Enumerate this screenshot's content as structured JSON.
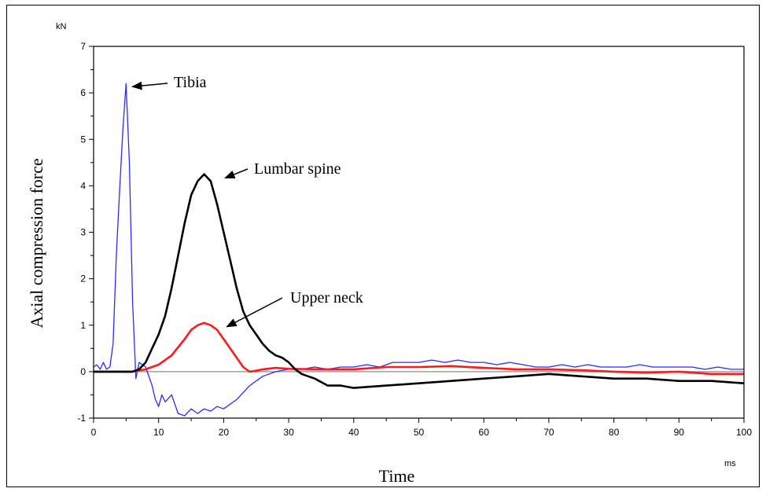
{
  "chart_data": {
    "type": "line",
    "xlabel": "Time",
    "ylabel": "Axial compression force",
    "x_unit": "ms",
    "y_unit": "kN",
    "xlim": [
      0,
      100
    ],
    "ylim": [
      -1,
      7
    ],
    "xticks": [
      0,
      10,
      20,
      30,
      40,
      50,
      60,
      70,
      80,
      90,
      100
    ],
    "yticks": [
      -1,
      0,
      1,
      2,
      3,
      4,
      5,
      6,
      7
    ],
    "grid": false,
    "zero_line_color": "#a0a0a0",
    "series": [
      {
        "label": "Tibia",
        "color": "#2b2bff",
        "points": [
          [
            0,
            0.1
          ],
          [
            0.5,
            0.15
          ],
          [
            1,
            0.05
          ],
          [
            1.5,
            0.2
          ],
          [
            2,
            0.05
          ],
          [
            2.5,
            0.1
          ],
          [
            3,
            0.6
          ],
          [
            3.5,
            2.5
          ],
          [
            4,
            3.9
          ],
          [
            4.5,
            5.2
          ],
          [
            5,
            6.2
          ],
          [
            5.5,
            4.5
          ],
          [
            6,
            1.5
          ],
          [
            6.5,
            -0.15
          ],
          [
            7,
            0.2
          ],
          [
            8,
            0.1
          ],
          [
            9,
            -0.3
          ],
          [
            9.5,
            -0.6
          ],
          [
            10,
            -0.75
          ],
          [
            10.5,
            -0.5
          ],
          [
            11,
            -0.65
          ],
          [
            12,
            -0.5
          ],
          [
            13,
            -0.9
          ],
          [
            14,
            -0.95
          ],
          [
            15,
            -0.8
          ],
          [
            16,
            -0.9
          ],
          [
            17,
            -0.8
          ],
          [
            18,
            -0.85
          ],
          [
            19,
            -0.75
          ],
          [
            20,
            -0.8
          ],
          [
            22,
            -0.6
          ],
          [
            24,
            -0.3
          ],
          [
            26,
            -0.1
          ],
          [
            28,
            0
          ],
          [
            30,
            0.05
          ],
          [
            32,
            0.05
          ],
          [
            34,
            0.1
          ],
          [
            36,
            0.05
          ],
          [
            38,
            0.1
          ],
          [
            40,
            0.1
          ],
          [
            42,
            0.15
          ],
          [
            44,
            0.1
          ],
          [
            46,
            0.2
          ],
          [
            48,
            0.2
          ],
          [
            50,
            0.2
          ],
          [
            52,
            0.25
          ],
          [
            54,
            0.2
          ],
          [
            56,
            0.25
          ],
          [
            58,
            0.2
          ],
          [
            60,
            0.2
          ],
          [
            62,
            0.15
          ],
          [
            64,
            0.2
          ],
          [
            66,
            0.15
          ],
          [
            68,
            0.1
          ],
          [
            70,
            0.1
          ],
          [
            72,
            0.15
          ],
          [
            74,
            0.1
          ],
          [
            76,
            0.15
          ],
          [
            78,
            0.1
          ],
          [
            80,
            0.1
          ],
          [
            82,
            0.1
          ],
          [
            84,
            0.15
          ],
          [
            86,
            0.1
          ],
          [
            88,
            0.1
          ],
          [
            90,
            0.1
          ],
          [
            92,
            0.1
          ],
          [
            94,
            0.05
          ],
          [
            96,
            0.1
          ],
          [
            98,
            0.05
          ],
          [
            100,
            0.05
          ]
        ]
      },
      {
        "label": "Lumbar spine",
        "color": "#000000",
        "points": [
          [
            0,
            0
          ],
          [
            4,
            0
          ],
          [
            6,
            0
          ],
          [
            7,
            0.05
          ],
          [
            8,
            0.2
          ],
          [
            9,
            0.5
          ],
          [
            10,
            0.8
          ],
          [
            11,
            1.2
          ],
          [
            12,
            1.8
          ],
          [
            13,
            2.5
          ],
          [
            14,
            3.2
          ],
          [
            15,
            3.8
          ],
          [
            16,
            4.1
          ],
          [
            17,
            4.25
          ],
          [
            18,
            4.1
          ],
          [
            19,
            3.6
          ],
          [
            20,
            3.0
          ],
          [
            21,
            2.4
          ],
          [
            22,
            1.8
          ],
          [
            23,
            1.3
          ],
          [
            24,
            1.0
          ],
          [
            25,
            0.8
          ],
          [
            26,
            0.6
          ],
          [
            27,
            0.45
          ],
          [
            28,
            0.35
          ],
          [
            29,
            0.3
          ],
          [
            30,
            0.2
          ],
          [
            31,
            0.05
          ],
          [
            32,
            -0.05
          ],
          [
            33,
            -0.1
          ],
          [
            34,
            -0.15
          ],
          [
            36,
            -0.3
          ],
          [
            38,
            -0.3
          ],
          [
            40,
            -0.35
          ],
          [
            45,
            -0.3
          ],
          [
            50,
            -0.25
          ],
          [
            55,
            -0.2
          ],
          [
            60,
            -0.15
          ],
          [
            65,
            -0.1
          ],
          [
            70,
            -0.05
          ],
          [
            75,
            -0.1
          ],
          [
            80,
            -0.15
          ],
          [
            85,
            -0.15
          ],
          [
            90,
            -0.2
          ],
          [
            95,
            -0.2
          ],
          [
            100,
            -0.25
          ]
        ]
      },
      {
        "label": "Upper neck",
        "color": "#ff1a1a",
        "points": [
          [
            0,
            0
          ],
          [
            6,
            0
          ],
          [
            8,
            0.05
          ],
          [
            10,
            0.15
          ],
          [
            12,
            0.35
          ],
          [
            14,
            0.7
          ],
          [
            15,
            0.9
          ],
          [
            16,
            1.0
          ],
          [
            17,
            1.05
          ],
          [
            18,
            1.0
          ],
          [
            19,
            0.9
          ],
          [
            20,
            0.7
          ],
          [
            21,
            0.5
          ],
          [
            22,
            0.3
          ],
          [
            23,
            0.1
          ],
          [
            24,
            0
          ],
          [
            25,
            0.02
          ],
          [
            26,
            0.05
          ],
          [
            28,
            0.08
          ],
          [
            30,
            0.06
          ],
          [
            35,
            0.05
          ],
          [
            40,
            0.05
          ],
          [
            45,
            0.1
          ],
          [
            50,
            0.1
          ],
          [
            55,
            0.12
          ],
          [
            60,
            0.08
          ],
          [
            65,
            0.05
          ],
          [
            70,
            0.05
          ],
          [
            75,
            0.03
          ],
          [
            80,
            0
          ],
          [
            85,
            -0.02
          ],
          [
            90,
            0
          ],
          [
            95,
            -0.05
          ],
          [
            100,
            -0.05
          ]
        ]
      }
    ],
    "annotations": [
      {
        "text": "Tibia",
        "target": [
          5,
          6.2
        ]
      },
      {
        "text": "Lumbar spine",
        "target": [
          19.5,
          4.2
        ]
      },
      {
        "text": "Upper neck",
        "target": [
          20,
          1.0
        ]
      }
    ]
  }
}
